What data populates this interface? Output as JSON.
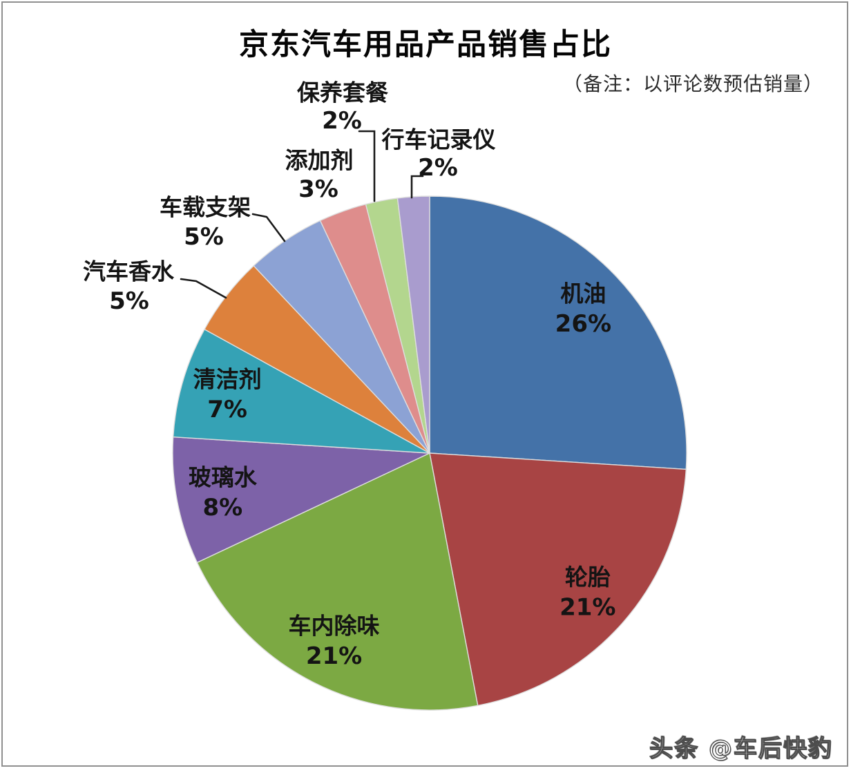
{
  "header": {
    "title": "京东汽车用品产品销售占比",
    "note": "（备注：以评论数预估销量）"
  },
  "footer": {
    "watermark": "头条 @车后快豹"
  },
  "chart_data": {
    "type": "pie",
    "title": "京东汽车用品产品销售占比",
    "subtitle": "（备注：以评论数预估销量）",
    "start_angle_deg": 0,
    "direction": "clockwise",
    "legend_position": "none",
    "total_pct": 100,
    "slices": [
      {
        "label": "机油",
        "value_pct": 26,
        "pct_label": "26%",
        "color": "#4472A8",
        "label_placement": "inside"
      },
      {
        "label": "轮胎",
        "value_pct": 21,
        "pct_label": "21%",
        "color": "#A84444",
        "label_placement": "inside"
      },
      {
        "label": "车内除味",
        "value_pct": 21,
        "pct_label": "21%",
        "color": "#7CA943",
        "label_placement": "inside"
      },
      {
        "label": "玻璃水",
        "value_pct": 8,
        "pct_label": "8%",
        "color": "#7D62A8",
        "label_placement": "inside"
      },
      {
        "label": "清洁剂",
        "value_pct": 7,
        "pct_label": "7%",
        "color": "#35A2B5",
        "label_placement": "inside"
      },
      {
        "label": "汽车香水",
        "value_pct": 5,
        "pct_label": "5%",
        "color": "#DD813C",
        "label_placement": "outside"
      },
      {
        "label": "车载支架",
        "value_pct": 5,
        "pct_label": "5%",
        "color": "#8CA2D4",
        "label_placement": "outside"
      },
      {
        "label": "添加剂",
        "value_pct": 3,
        "pct_label": "3%",
        "color": "#DE8D8C",
        "label_placement": "outside"
      },
      {
        "label": "保养套餐",
        "value_pct": 2,
        "pct_label": "2%",
        "color": "#B3D68E",
        "label_placement": "outside"
      },
      {
        "label": "行车记录仪",
        "value_pct": 2,
        "pct_label": "2%",
        "color": "#A99CCE",
        "label_placement": "outside"
      }
    ]
  }
}
